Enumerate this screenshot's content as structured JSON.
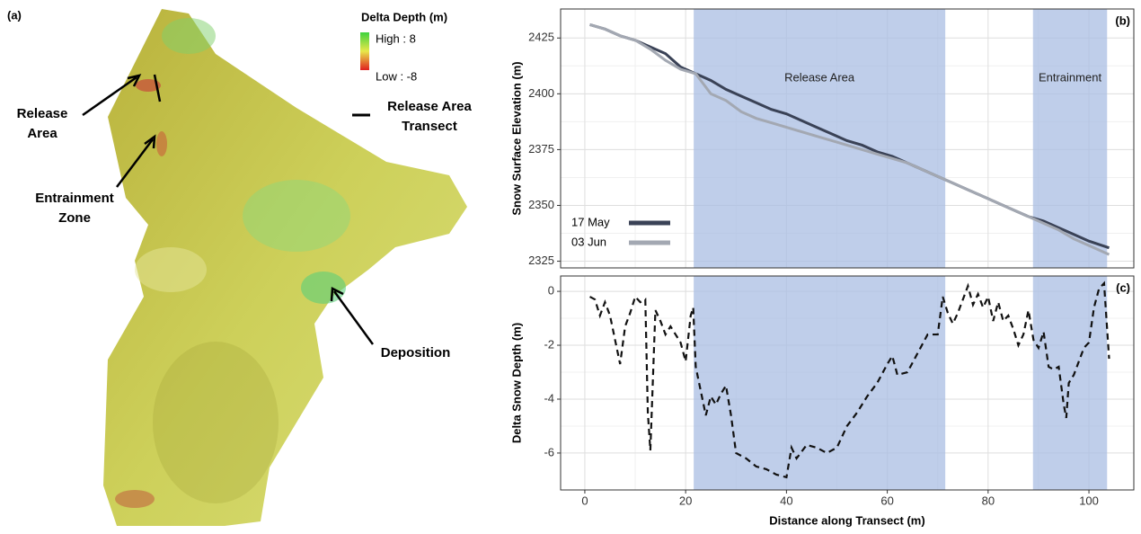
{
  "map": {
    "panel": "(a)",
    "legend_title": "Delta Depth (m)",
    "legend_high": "High : 8",
    "legend_low": "Low : -8",
    "transect_legend": "Release Area Transect",
    "release": "Release Area",
    "entrainment": "Entrainment Zone",
    "deposition": "Deposition"
  },
  "chart_data": [
    {
      "type": "line",
      "panel": "(b)",
      "ylabel": "Snow Surface Elevation (m)",
      "x": [
        1,
        4,
        7,
        10,
        13,
        16,
        19,
        22,
        25,
        28,
        31,
        34,
        37,
        40,
        43,
        46,
        49,
        52,
        55,
        58,
        61,
        64,
        67,
        70,
        73,
        76,
        79,
        82,
        85,
        88,
        91,
        94,
        97,
        100,
        104
      ],
      "series": [
        {
          "name": "17 May",
          "color": "#3a4256",
          "values": [
            2431,
            2429,
            2426,
            2424,
            2421,
            2418,
            2412,
            2409,
            2406,
            2402,
            2399,
            2396,
            2393,
            2391,
            2388,
            2385,
            2382,
            2379,
            2377,
            2374,
            2372,
            2369,
            2366,
            2363,
            2360,
            2357,
            2354,
            2351,
            2348,
            2345,
            2343,
            2340,
            2337,
            2334,
            2331
          ]
        },
        {
          "name": "03 Jun",
          "color": "#a3a8b2",
          "values": [
            2431,
            2429,
            2426,
            2424,
            2420,
            2415,
            2411,
            2409,
            2400,
            2397,
            2392,
            2389,
            2387,
            2385,
            2383,
            2381,
            2379,
            2377,
            2375,
            2373,
            2371,
            2369,
            2366,
            2363,
            2360,
            2357,
            2354,
            2351,
            2348,
            2345,
            2342,
            2339,
            2335,
            2332,
            2328
          ]
        }
      ],
      "shaded": [
        {
          "label": "Release Area",
          "xmin": 21.6,
          "xmax": 71.5
        },
        {
          "label": "Entrainment",
          "xmin": 88.9,
          "xmax": 103.6
        }
      ],
      "xlim": [
        -4.8,
        108.9
      ],
      "xticks": [
        0,
        20,
        40,
        60,
        80,
        100
      ],
      "ylim": [
        2322,
        2438
      ],
      "yticks": [
        2325,
        2350,
        2375,
        2400,
        2425
      ],
      "grid": true,
      "legend": "bottom-left"
    },
    {
      "type": "line",
      "panel": "(c)",
      "ylabel": "Delta Snow Depth (m)",
      "xlabel": "Distance along Transect (m)",
      "x": [
        1,
        2,
        3,
        4,
        5,
        6,
        7,
        8,
        9,
        10,
        11,
        12,
        12.5,
        13,
        14,
        15,
        16,
        17,
        18,
        19,
        20,
        21,
        21.5,
        22,
        24,
        25,
        26,
        27,
        28,
        29,
        30,
        32,
        34,
        36,
        38,
        40,
        41,
        42,
        44,
        46,
        48,
        50,
        52,
        54,
        56,
        58,
        60,
        61,
        62,
        64,
        66,
        68,
        70,
        71,
        72,
        73,
        74,
        75,
        76,
        77,
        78,
        79,
        80,
        81,
        82,
        83,
        84,
        85,
        86,
        87,
        88,
        89,
        90,
        91,
        92,
        93,
        94,
        95,
        95.5,
        96,
        97,
        98,
        99,
        100,
        101,
        102,
        103,
        104
      ],
      "values": [
        -0.2,
        -0.3,
        -0.9,
        -0.4,
        -0.9,
        -1.8,
        -2.7,
        -1.3,
        -0.8,
        -0.2,
        -0.4,
        -0.3,
        -4.5,
        -5.9,
        -0.7,
        -1.1,
        -1.6,
        -1.3,
        -1.6,
        -1.9,
        -2.6,
        -0.9,
        -0.6,
        -2.8,
        -4.6,
        -3.9,
        -4.2,
        -3.8,
        -3.5,
        -4.6,
        -6.0,
        -6.2,
        -6.5,
        -6.6,
        -6.8,
        -6.9,
        -5.8,
        -6.2,
        -5.7,
        -5.8,
        -6.0,
        -5.8,
        -5.0,
        -4.5,
        -3.9,
        -3.4,
        -2.7,
        -2.4,
        -3.1,
        -3.0,
        -2.3,
        -1.6,
        -1.6,
        -0.2,
        -0.8,
        -1.2,
        -0.8,
        -0.3,
        0.2,
        -0.5,
        -0.1,
        -0.6,
        -0.2,
        -1.1,
        -0.4,
        -1.1,
        -0.9,
        -1.4,
        -2.0,
        -1.6,
        -0.7,
        -1.8,
        -2.1,
        -1.5,
        -2.8,
        -2.9,
        -2.8,
        -4.2,
        -4.7,
        -3.4,
        -3.1,
        -2.6,
        -2.1,
        -1.9,
        -0.6,
        0.1,
        0.3,
        -2.5
      ],
      "color": "#111111",
      "dashed": true,
      "shaded": [
        {
          "xmin": 21.6,
          "xmax": 71.5
        },
        {
          "xmin": 88.9,
          "xmax": 103.6
        }
      ],
      "xlim": [
        -4.8,
        108.9
      ],
      "xticks": [
        0,
        20,
        40,
        60,
        80,
        100
      ],
      "ylim": [
        -7.37,
        0.57
      ],
      "yticks": [
        -6,
        -4,
        -2,
        0
      ],
      "grid": true
    }
  ]
}
